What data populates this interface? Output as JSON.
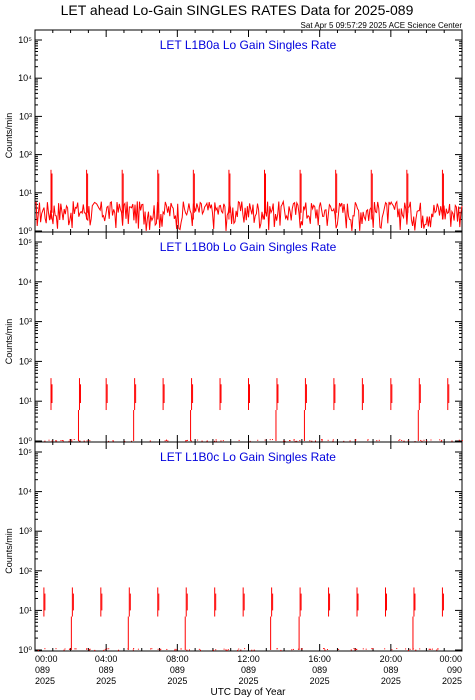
{
  "header": {
    "title": "LET ahead Lo-Gain SINGLES RATES Data for 2025-089",
    "stamp": "Sat Apr  5 09:57:29 2025 ACE Science Center"
  },
  "colors": {
    "data": "#ff0000",
    "panel_title": "#0000dd",
    "axes": "#000000"
  },
  "chart_data": [
    {
      "type": "line",
      "title": "LET L1B0a Lo Gain Singles Rate",
      "ylabel": "Counts/min",
      "yscale": "log",
      "ylim": [
        1,
        100000
      ],
      "yticks": [
        "10⁰",
        "10¹",
        "10²",
        "10³",
        "10⁴",
        "10⁵"
      ],
      "xlim": [
        0,
        24
      ],
      "baseline_range": [
        1,
        6
      ],
      "spike_hours": [
        0.9,
        2.9,
        4.9,
        6.9,
        8.9,
        10.9,
        12.9,
        14.9,
        16.9,
        18.9,
        20.9,
        22.9
      ],
      "spike_value": 40
    },
    {
      "type": "line",
      "title": "LET L1B0b Lo Gain Singles Rate",
      "ylabel": "Counts/min",
      "yscale": "log",
      "ylim": [
        1,
        100000
      ],
      "yticks": [
        "10⁰",
        "10¹",
        "10²",
        "10³",
        "10⁴",
        "10⁵"
      ],
      "xlim": [
        0,
        24
      ],
      "spike_hours": [
        0.9,
        2.5,
        4.0,
        5.6,
        7.2,
        8.8,
        10.4,
        12.0,
        13.6,
        15.2,
        16.8,
        18.4,
        20.0,
        21.6,
        23.2
      ],
      "spike_value": 38,
      "spike_floor": 6
    },
    {
      "type": "line",
      "title": "LET L1B0c Lo Gain Singles Rate",
      "ylabel": "Counts/min",
      "yscale": "log",
      "ylim": [
        1,
        100000
      ],
      "yticks": [
        "10⁰",
        "10¹",
        "10²",
        "10³",
        "10⁴",
        "10⁵"
      ],
      "xlim": [
        0,
        24
      ],
      "spike_hours": [
        0.5,
        2.1,
        3.7,
        5.3,
        6.9,
        8.5,
        10.1,
        11.7,
        13.3,
        14.9,
        16.5,
        18.1,
        19.7,
        21.3,
        22.9
      ],
      "spike_value": 38,
      "spike_floor": 7
    }
  ],
  "x_axis": {
    "label": "UTC Day of Year",
    "ticks": [
      {
        "hour": 0,
        "time": "00:00",
        "doy": "089",
        "year": "2025"
      },
      {
        "hour": 4,
        "time": "04:00",
        "doy": "089",
        "year": "2025"
      },
      {
        "hour": 8,
        "time": "08:00",
        "doy": "089",
        "year": "2025"
      },
      {
        "hour": 12,
        "time": "12:00",
        "doy": "089",
        "year": "2025"
      },
      {
        "hour": 16,
        "time": "16:00",
        "doy": "089",
        "year": "2025"
      },
      {
        "hour": 20,
        "time": "20:00",
        "doy": "089",
        "year": "2025"
      },
      {
        "hour": 24,
        "time": "00:00",
        "doy": "090",
        "year": "2025"
      }
    ]
  }
}
